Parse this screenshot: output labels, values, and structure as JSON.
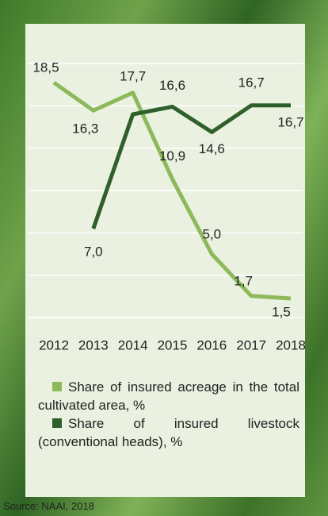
{
  "chart_data": {
    "type": "line",
    "categories": [
      "2012",
      "2013",
      "2014",
      "2015",
      "2016",
      "2017",
      "2018"
    ],
    "series": [
      {
        "name": "Share of insured acreage in the total cultivated area, %",
        "color": "#8db95a",
        "values": [
          18.5,
          16.3,
          17.7,
          10.9,
          5.0,
          1.7,
          1.5
        ],
        "value_labels": [
          "18,5",
          "16,3",
          "17,7",
          "10,9",
          "5,0",
          "1,7",
          "1,5"
        ]
      },
      {
        "name": "Share of insured livestock (conventional heads), %",
        "color": "#2f5f2b",
        "values": [
          null,
          7.0,
          16.0,
          16.6,
          14.6,
          16.7,
          16.7
        ],
        "value_labels": [
          null,
          "7,0",
          null,
          "16,6",
          "14,6",
          "16,7",
          "16,7"
        ]
      }
    ],
    "ylim": [
      0,
      20
    ],
    "grid": true,
    "source": "Source: NAAI, 2018"
  }
}
